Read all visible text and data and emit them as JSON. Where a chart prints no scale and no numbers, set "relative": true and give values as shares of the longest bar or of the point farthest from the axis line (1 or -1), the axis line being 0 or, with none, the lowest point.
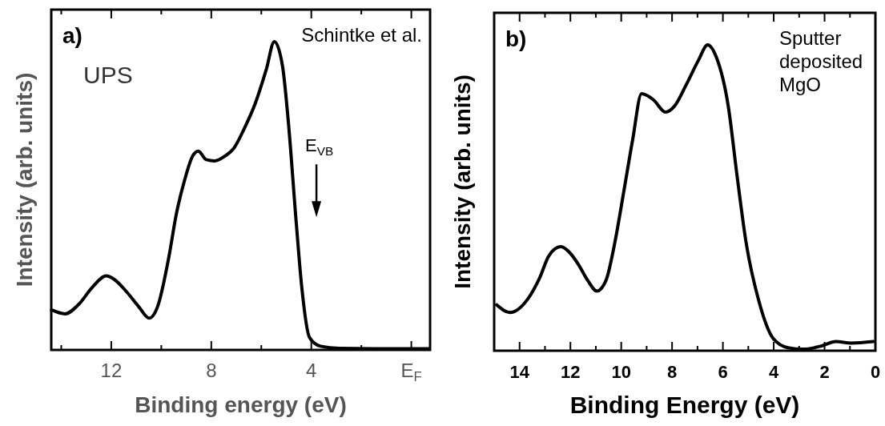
{
  "chart_data": [
    {
      "type": "line",
      "xlabel": "Binding energy (eV)",
      "ylabel": "Intensity (arb. units)",
      "relative": true,
      "xlim": [
        14.4,
        -0.75
      ],
      "xticks": [
        {
          "value": 14,
          "label": null
        },
        12,
        {
          "value": 10,
          "label": null
        },
        8,
        {
          "value": 6,
          "label": null
        },
        4,
        {
          "value": 2,
          "label": null
        },
        {
          "value": 0,
          "label": "E$_{F}$"
        }
      ],
      "annotations": [
        "a)",
        "UPS",
        "Schintke et al.",
        "E$_{VB}$"
      ],
      "series": [
        {
          "color": "#000000",
          "x": [
            14.39,
            13.85,
            13.3,
            12.76,
            12.2,
            11.9,
            11.35,
            10.9,
            10.48,
            10.15,
            9.7,
            9.4,
            9.07,
            8.74,
            8.52,
            8.2,
            7.87,
            7.43,
            7.1,
            6.67,
            6.24,
            5.8,
            5.48,
            5.15,
            4.93,
            4.6,
            4.39,
            4.07,
            3.63,
            2.87,
            1.5,
            0.5,
            -0.7
          ],
          "values": [
            0.13,
            0.117,
            0.148,
            0.203,
            0.24,
            0.23,
            0.185,
            0.14,
            0.103,
            0.14,
            0.3,
            0.44,
            0.55,
            0.63,
            0.645,
            0.617,
            0.613,
            0.63,
            0.654,
            0.72,
            0.8,
            0.91,
            1,
            0.92,
            0.75,
            0.41,
            0.21,
            0.04,
            0.012,
            0.005,
            0.004,
            0.004,
            0.004
          ]
        }
      ]
    },
    {
      "type": "line",
      "xlabel": "Binding Energy (eV)",
      "ylabel": "Intensity (arb. units)",
      "relative": true,
      "xlim": [
        15,
        0
      ],
      "xticks": [
        {
          "value": 15,
          "label": null
        },
        14,
        {
          "value": 13,
          "label": null
        },
        12,
        {
          "value": 11,
          "label": null
        },
        10,
        {
          "value": 9,
          "label": null
        },
        8,
        {
          "value": 7,
          "label": null
        },
        6,
        {
          "value": 5,
          "label": null
        },
        4,
        {
          "value": 3,
          "label": null
        },
        2,
        {
          "value": 1,
          "label": null
        },
        0
      ],
      "annotations": [
        "b)",
        "Sputter deposited MgO"
      ],
      "series": [
        {
          "color": "#000000",
          "x": [
            14.9,
            14.38,
            13.67,
            13.2,
            12.85,
            12.38,
            12.02,
            11.67,
            11.32,
            10.96,
            10.6,
            10.26,
            9.9,
            9.55,
            9.2,
            8.73,
            8.26,
            7.9,
            7.44,
            6.96,
            6.6,
            6.26,
            5.79,
            5.44,
            5.08,
            4.61,
            4.02,
            3.44,
            2.85,
            2.14,
            1.55,
            0.96,
            0.08
          ],
          "values": [
            0.15,
            0.125,
            0.17,
            0.24,
            0.31,
            0.34,
            0.32,
            0.28,
            0.23,
            0.195,
            0.23,
            0.35,
            0.52,
            0.69,
            0.84,
            0.82,
            0.78,
            0.8,
            0.87,
            0.95,
            1,
            0.96,
            0.8,
            0.57,
            0.35,
            0.17,
            0.04,
            0.01,
            0.005,
            0.015,
            0.03,
            0.025,
            0.03
          ]
        }
      ]
    }
  ]
}
